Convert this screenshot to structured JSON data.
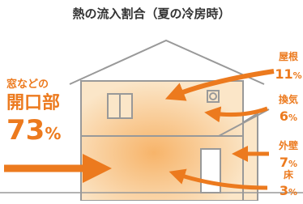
{
  "title": "熱の流入割合（夏の冷房時）",
  "main": {
    "label_lines": [
      "窓などの",
      "開口部"
    ],
    "value": "73",
    "unit": "%"
  },
  "items": [
    {
      "label": "屋根",
      "value": "11",
      "unit": "%"
    },
    {
      "label": "換気",
      "value": "6",
      "unit": "%"
    },
    {
      "label": "外壁",
      "value": "7",
      "unit": "%"
    },
    {
      "label": "床",
      "value": "3",
      "unit": "%"
    }
  ]
}
